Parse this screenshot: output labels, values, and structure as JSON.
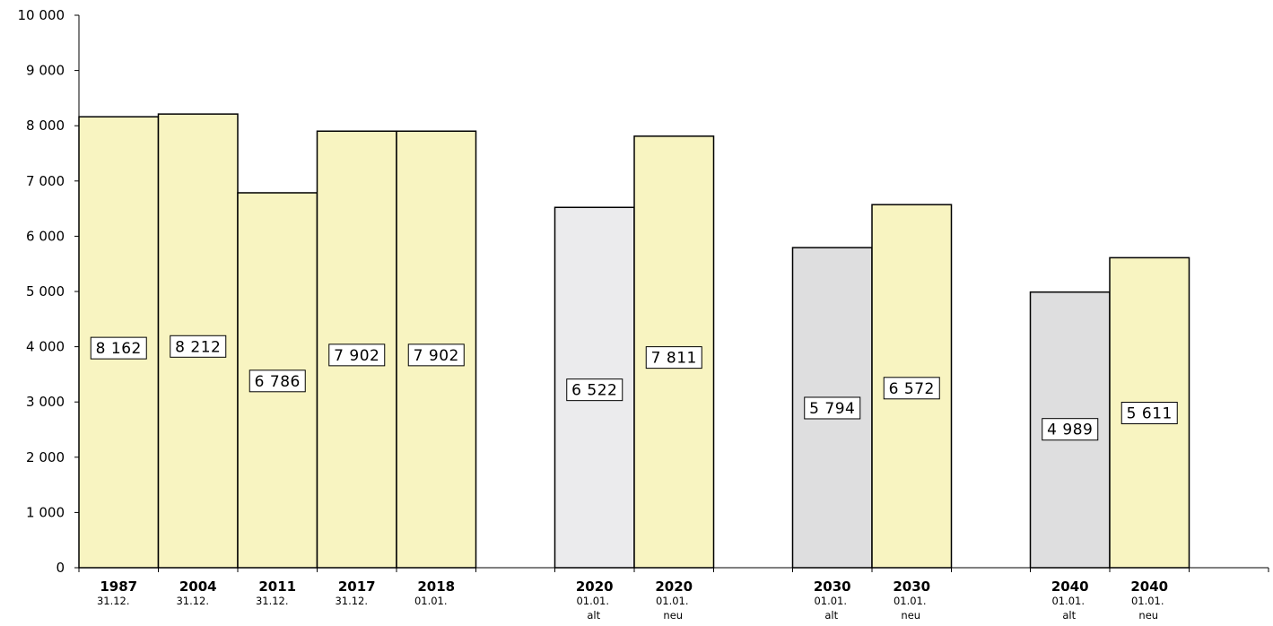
{
  "chart_data": {
    "type": "bar",
    "ylim": [
      0,
      10000
    ],
    "yticks": [
      "0",
      "1 000",
      "2 000",
      "3 000",
      "4 000",
      "5 000",
      "6 000",
      "7 000",
      "8 000",
      "9 000",
      "10 000"
    ],
    "grid": false,
    "legend": "none",
    "colors": {
      "yellow": "#f8f4c1",
      "light_grey": "#ebebed",
      "grey": "#dededf",
      "outline": "#000000"
    },
    "bars": [
      {
        "year": "1987",
        "date": "31.12.",
        "variant": "",
        "value": 8162,
        "label": "8 162",
        "color": "yellow",
        "label_value": 3975
      },
      {
        "year": "2004",
        "date": "31.12.",
        "variant": "",
        "value": 8212,
        "label": "8 212",
        "color": "yellow",
        "label_value": 4005
      },
      {
        "year": "2011",
        "date": "31.12.",
        "variant": "",
        "value": 6786,
        "label": "6 786",
        "color": "yellow",
        "label_value": 3380
      },
      {
        "year": "2017",
        "date": "31.12.",
        "variant": "",
        "value": 7902,
        "label": "7 902",
        "color": "yellow",
        "label_value": 3850
      },
      {
        "year": "2018",
        "date": "01.01.",
        "variant": "",
        "value": 7902,
        "label": "7 902",
        "color": "yellow",
        "label_value": 3850
      },
      {
        "year": "2020",
        "date": "01.01.",
        "variant": "alt",
        "value": 6522,
        "label": "6 522",
        "color": "light_grey",
        "label_value": 3220
      },
      {
        "year": "2020",
        "date": "01.01.",
        "variant": "neu",
        "value": 7811,
        "label": "7 811",
        "color": "yellow",
        "label_value": 3805
      },
      {
        "year": "2030",
        "date": "01.01.",
        "variant": "alt",
        "value": 5794,
        "label": "5 794",
        "color": "grey",
        "label_value": 2890
      },
      {
        "year": "2030",
        "date": "01.01.",
        "variant": "neu",
        "value": 6572,
        "label": "6 572",
        "color": "yellow",
        "label_value": 3250
      },
      {
        "year": "2040",
        "date": "01.01.",
        "variant": "alt",
        "value": 4989,
        "label": "4 989",
        "color": "grey",
        "label_value": 2505
      },
      {
        "year": "2040",
        "date": "01.01.",
        "variant": "neu",
        "value": 5611,
        "label": "5 611",
        "color": "yellow",
        "label_value": 2800
      }
    ]
  }
}
